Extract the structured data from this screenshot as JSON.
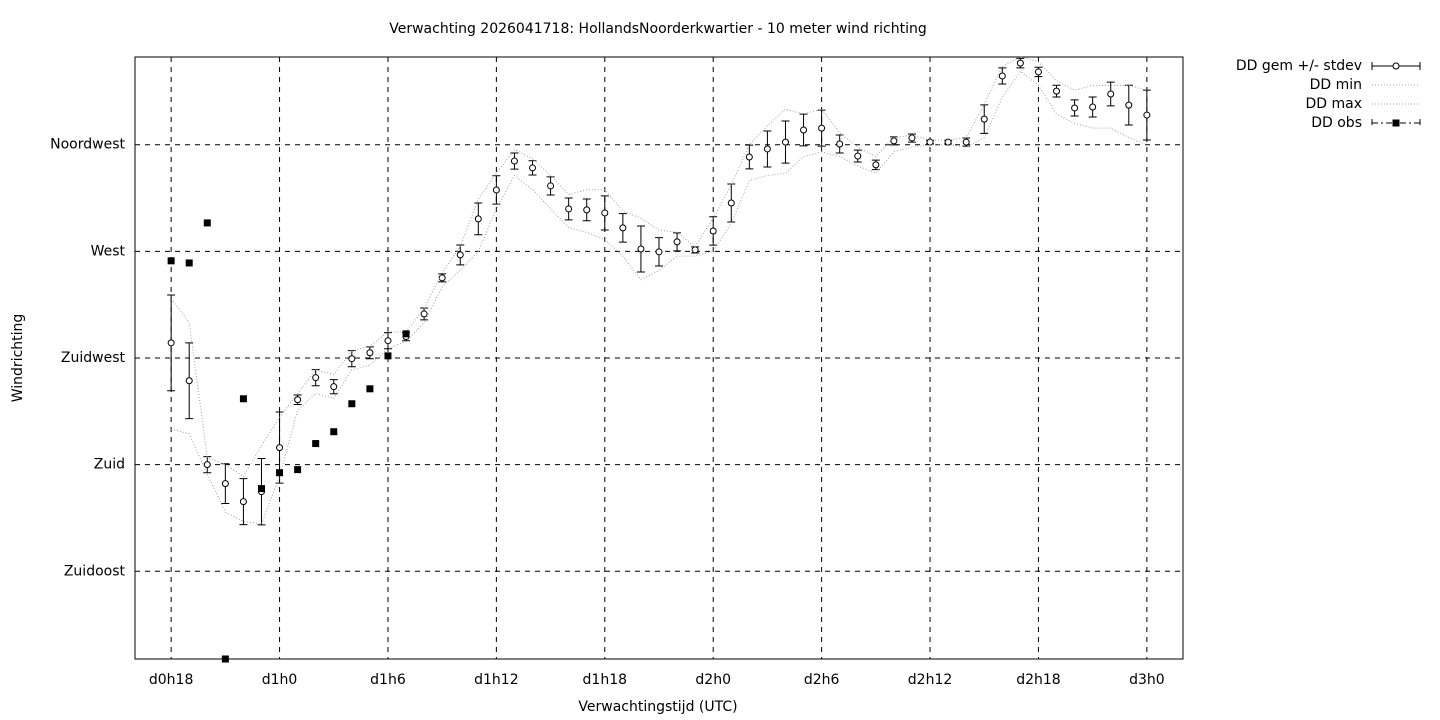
{
  "chart_data": {
    "type": "line",
    "title": "Verwachting 2026041718: HollandsNoorderkwartier - 10 meter wind richting",
    "x_label": "Verwachtingstijd (UTC)",
    "y_label": "Windrichting",
    "x": [
      18,
      19,
      20,
      21,
      22,
      23,
      24,
      25,
      26,
      27,
      28,
      29,
      30,
      31,
      32,
      33,
      34,
      35,
      36,
      37,
      38,
      39,
      40,
      41,
      42,
      43,
      44,
      45,
      46,
      47,
      48,
      49,
      50,
      51,
      52,
      53,
      54,
      55,
      56,
      57,
      58,
      59,
      60,
      61,
      62,
      63,
      64,
      65,
      66,
      67,
      68,
      69,
      70,
      71,
      72
    ],
    "xlim": [
      16,
      74
    ],
    "xticks": [
      {
        "value": 18,
        "label": "d0h18"
      },
      {
        "value": 24,
        "label": "d1h0"
      },
      {
        "value": 30,
        "label": "d1h6"
      },
      {
        "value": 36,
        "label": "d1h12"
      },
      {
        "value": 42,
        "label": "d1h18"
      },
      {
        "value": 48,
        "label": "d2h0"
      },
      {
        "value": 54,
        "label": "d2h6"
      },
      {
        "value": 60,
        "label": "d2h12"
      },
      {
        "value": 66,
        "label": "d2h18"
      },
      {
        "value": 72,
        "label": "d3h0"
      }
    ],
    "ylim": [
      98,
      352
    ],
    "yticks": [
      {
        "value": 135,
        "label": "Zuidoost"
      },
      {
        "value": 180,
        "label": "Zuid"
      },
      {
        "value": 225,
        "label": "Zuidwest"
      },
      {
        "value": 270,
        "label": "West"
      },
      {
        "value": 315,
        "label": "Noordwest"
      }
    ],
    "grid": true,
    "legend": "outside-right",
    "series": [
      {
        "name": "DD gem +/- stdev",
        "color": "#000000",
        "style": "errorbars",
        "values": [
          231.4,
          215.4,
          180,
          172,
          164.4,
          168.6,
          187.2,
          207.4,
          216.7,
          212.9,
          224.7,
          227.2,
          232.3,
          234,
          243.6,
          258.8,
          268.5,
          283.7,
          295.9,
          308.1,
          305.2,
          297.6,
          287.9,
          287.5,
          286.2,
          279.9,
          271,
          269.8,
          274,
          270.6,
          278.6,
          290.4,
          309.8,
          313.2,
          316.1,
          321.2,
          322,
          315.3,
          310.2,
          306.5,
          316.6,
          317.8,
          316.1,
          316.1,
          316.1,
          325.8,
          344,
          349.4,
          345.7,
          337.6,
          330.5,
          330.9,
          336.4,
          331.7,
          327.5
        ],
        "errors": [
          20.2,
          16,
          3.4,
          8.4,
          9.7,
          14,
          15,
          2,
          3.4,
          3,
          3.4,
          2.5,
          3.4,
          1.7,
          2.5,
          1.7,
          4.2,
          6.7,
          6,
          3.4,
          3,
          3.8,
          4.6,
          4.6,
          7.2,
          6,
          9.7,
          6,
          3.8,
          1.3,
          6,
          8,
          5,
          7.6,
          8.9,
          6.7,
          7.6,
          3.8,
          2.5,
          2,
          1.7,
          1.7,
          0.8,
          0.8,
          1.7,
          6,
          3.4,
          2,
          2,
          2.5,
          3.4,
          4.2,
          5,
          8.4,
          10.5
        ]
      },
      {
        "name": "DD min",
        "color": "#a0a0a0",
        "style": "dotted",
        "values": [
          195,
          193,
          176,
          160,
          156,
          155,
          175,
          203,
          210,
          208,
          220,
          222,
          229,
          232,
          240,
          255,
          262,
          270,
          288,
          302,
          296,
          288,
          280,
          278,
          275,
          268,
          258,
          262,
          268,
          268,
          270,
          282,
          300,
          302,
          303,
          310,
          312,
          310,
          306,
          303,
          312,
          314,
          315,
          315,
          314,
          318,
          335,
          346,
          340,
          328,
          324,
          322,
          322,
          318,
          315
        ]
      },
      {
        "name": "DD max",
        "color": "#a0a0a0",
        "style": "dotted",
        "values": [
          250,
          240,
          183,
          180,
          175,
          188,
          200,
          210,
          220,
          218,
          228,
          230,
          236,
          236,
          246,
          261,
          272,
          292,
          303,
          313,
          309,
          302,
          294,
          296,
          296,
          287,
          284,
          279,
          278,
          272,
          284,
          298,
          315,
          323,
          330,
          328,
          330,
          320,
          314,
          310,
          318,
          319,
          317,
          317,
          318,
          332,
          348,
          352,
          350,
          342,
          338,
          340,
          340,
          340,
          338
        ]
      },
      {
        "name": "DD obs",
        "color": "#000000",
        "style": "squares",
        "values": [
          266,
          265.1,
          282,
          98,
          207.8,
          169.9,
          176.6,
          177.9,
          188.9,
          193.9,
          205.7,
          212,
          225.9,
          235.2,
          null,
          null,
          null,
          null,
          null,
          null,
          null,
          null,
          null,
          null,
          null,
          null,
          null,
          null,
          null,
          null,
          null,
          null,
          null,
          null,
          null,
          null,
          null,
          null,
          null,
          null,
          null,
          null,
          null,
          null,
          null,
          null,
          null,
          null,
          null,
          null,
          null,
          null,
          null,
          null,
          null
        ]
      }
    ]
  }
}
